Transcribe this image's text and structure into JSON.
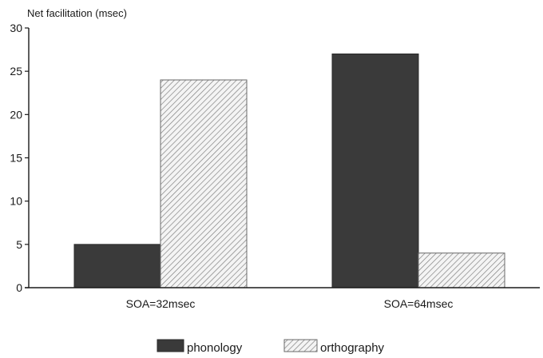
{
  "chart_data": {
    "type": "bar",
    "ylabel": "Net facilitation (msec)",
    "xlabel": "",
    "ylim": [
      0,
      30
    ],
    "yticks": [
      0,
      5,
      10,
      15,
      20,
      25,
      30
    ],
    "categories": [
      "SOA=32msec",
      "SOA=64msec"
    ],
    "series": [
      {
        "name": "phonology",
        "values": [
          5,
          27
        ],
        "color": "#3a3a3a",
        "pattern": "solid"
      },
      {
        "name": "orthography",
        "values": [
          24,
          4
        ],
        "color": "#e6e6e6",
        "pattern": "diagonal-hatch"
      }
    ],
    "grid": false,
    "legend_position": "bottom"
  }
}
